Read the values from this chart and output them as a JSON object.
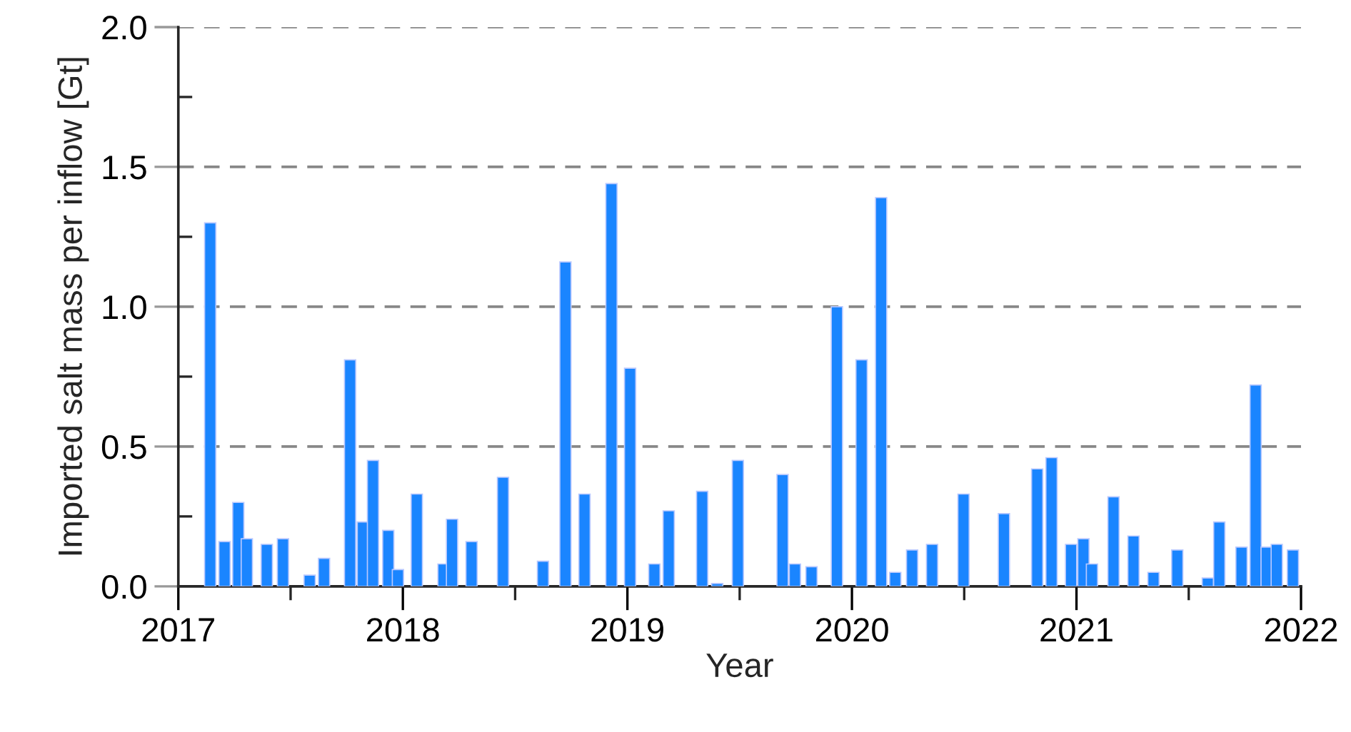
{
  "chart_data": {
    "type": "bar",
    "xlabel": "Year",
    "ylabel": "Imported salt mass per inflow [Gt]",
    "color": "#1a85ff",
    "x": [
      2017.142,
      2017.206,
      2017.267,
      2017.305,
      2017.394,
      2017.466,
      2017.585,
      2017.649,
      2017.765,
      2017.822,
      2017.867,
      2017.935,
      2017.978,
      2018.062,
      2018.181,
      2018.219,
      2018.306,
      2018.446,
      2018.624,
      2018.724,
      2018.809,
      2018.929,
      2019.012,
      2019.12,
      2019.184,
      2019.333,
      2019.4,
      2019.492,
      2019.691,
      2019.746,
      2019.82,
      2019.933,
      2020.043,
      2020.13,
      2020.193,
      2020.268,
      2020.357,
      2020.497,
      2020.677,
      2020.825,
      2020.889,
      2020.976,
      2021.031,
      2021.069,
      2021.165,
      2021.254,
      2021.343,
      2021.449,
      2021.585,
      2021.636,
      2021.735,
      2021.798,
      2021.847,
      2021.892,
      2021.964
    ],
    "values": [
      1.3,
      0.16,
      0.3,
      0.17,
      0.15,
      0.17,
      0.04,
      0.1,
      0.81,
      0.23,
      0.45,
      0.2,
      0.06,
      0.33,
      0.08,
      0.24,
      0.16,
      0.39,
      0.09,
      1.16,
      0.33,
      1.44,
      0.78,
      0.08,
      0.27,
      0.34,
      0.01,
      0.45,
      0.4,
      0.08,
      0.07,
      1.0,
      0.81,
      1.39,
      0.05,
      0.13,
      0.15,
      0.33,
      0.26,
      0.42,
      0.46,
      0.15,
      0.17,
      0.08,
      0.32,
      0.18,
      0.05,
      0.13,
      0.03,
      0.23,
      0.14,
      0.72,
      0.14,
      0.15,
      0.13
    ],
    "xlim": [
      2017,
      2022
    ],
    "ylim": [
      0,
      2.0
    ],
    "xticks": [
      2017,
      {
        "value": 2017.5,
        "label": null
      },
      2018,
      {
        "value": 2018.5,
        "label": null
      },
      2019,
      {
        "value": 2019.5,
        "label": null
      },
      2020,
      {
        "value": 2020.5,
        "label": null
      },
      2021,
      {
        "value": 2021.5,
        "label": null
      },
      2022
    ],
    "yticks": [
      {
        "value": 0,
        "label": "0.0"
      },
      {
        "value": 0.25,
        "label": null
      },
      0.5,
      {
        "value": 0.75,
        "label": null
      },
      {
        "value": 1.0,
        "label": "1.0"
      },
      {
        "value": 1.25,
        "label": null
      },
      1.5,
      {
        "value": 1.75,
        "label": null
      },
      {
        "value": 2.0,
        "label": "2.0"
      }
    ],
    "grid": "y"
  }
}
